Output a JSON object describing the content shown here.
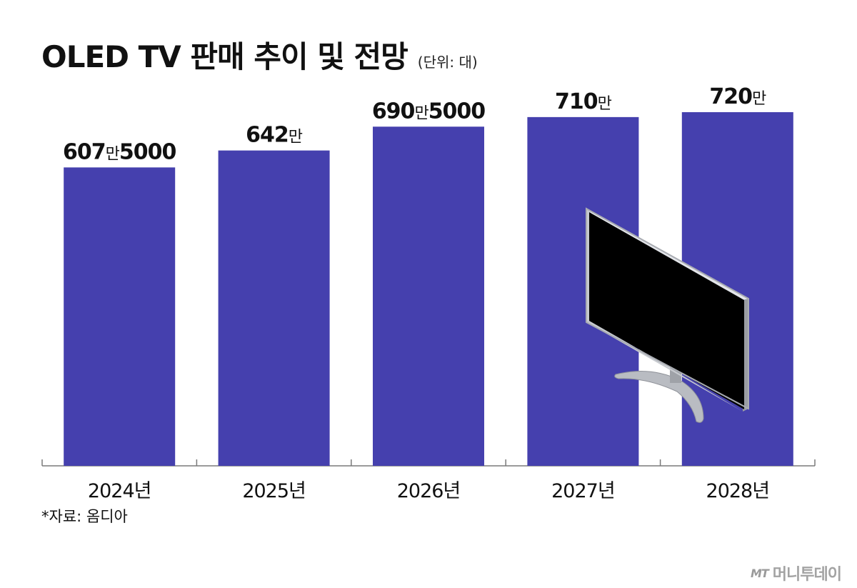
{
  "header": {
    "title": "OLED TV 판매 추이 및 전망",
    "unit": "(단위: 대)"
  },
  "footer": {
    "source": "*자료: 옴디아",
    "brand_logo": "MT",
    "brand_name": "머니투데이"
  },
  "colors": {
    "bar": "#4540ae",
    "axis": "#7a7a7a"
  },
  "chart_data": {
    "type": "bar",
    "categories": [
      "2024년",
      "2025년",
      "2026년",
      "2027년",
      "2028년"
    ],
    "values": [
      6075000,
      6420000,
      6905000,
      7100000,
      7200000
    ],
    "data_labels": [
      {
        "num": "607",
        "unit": "만",
        "rest": "5000"
      },
      {
        "num": "642",
        "unit": "만",
        "rest": ""
      },
      {
        "num": "690",
        "unit": "만",
        "rest": "5000"
      },
      {
        "num": "710",
        "unit": "만",
        "rest": ""
      },
      {
        "num": "720",
        "unit": "만",
        "rest": ""
      }
    ],
    "ylim": [
      0,
      7200000
    ],
    "grid": false,
    "legend": "none",
    "decoration": "tv-illustration-icon"
  }
}
